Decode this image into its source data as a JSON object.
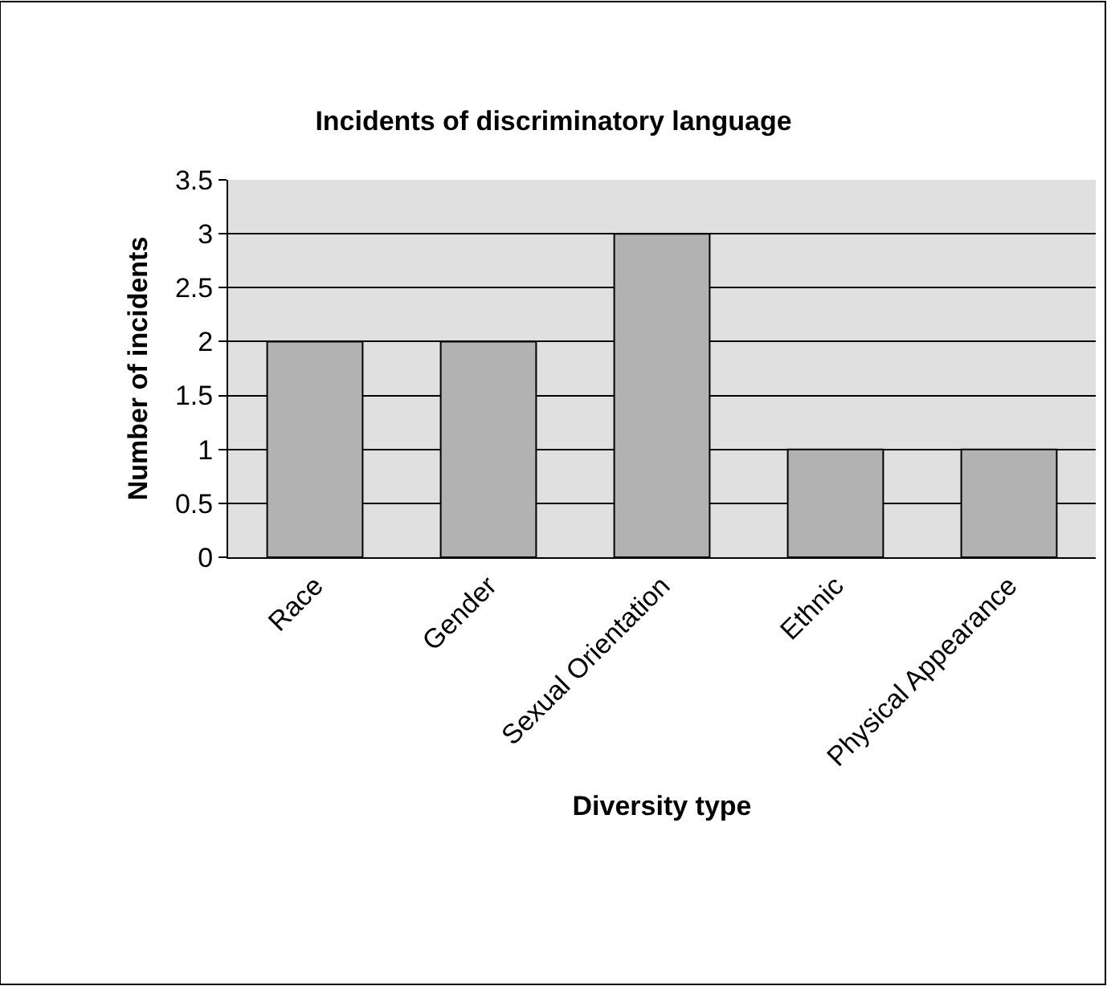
{
  "chart_data": {
    "type": "bar",
    "title": "Incidents of discriminatory language",
    "xlabel": "Diversity type",
    "ylabel": "Number of incidents",
    "categories": [
      "Race",
      "Gender",
      "Sexual Orientation",
      "Ethnic",
      "Physical Appearance"
    ],
    "values": [
      2,
      2,
      3,
      1,
      1
    ],
    "color": "#b2b2b2",
    "ylim": [
      0,
      3.5
    ],
    "yticks": [
      0,
      0.5,
      1,
      1.5,
      2,
      2.5,
      3,
      3.5
    ],
    "grid": "y"
  }
}
